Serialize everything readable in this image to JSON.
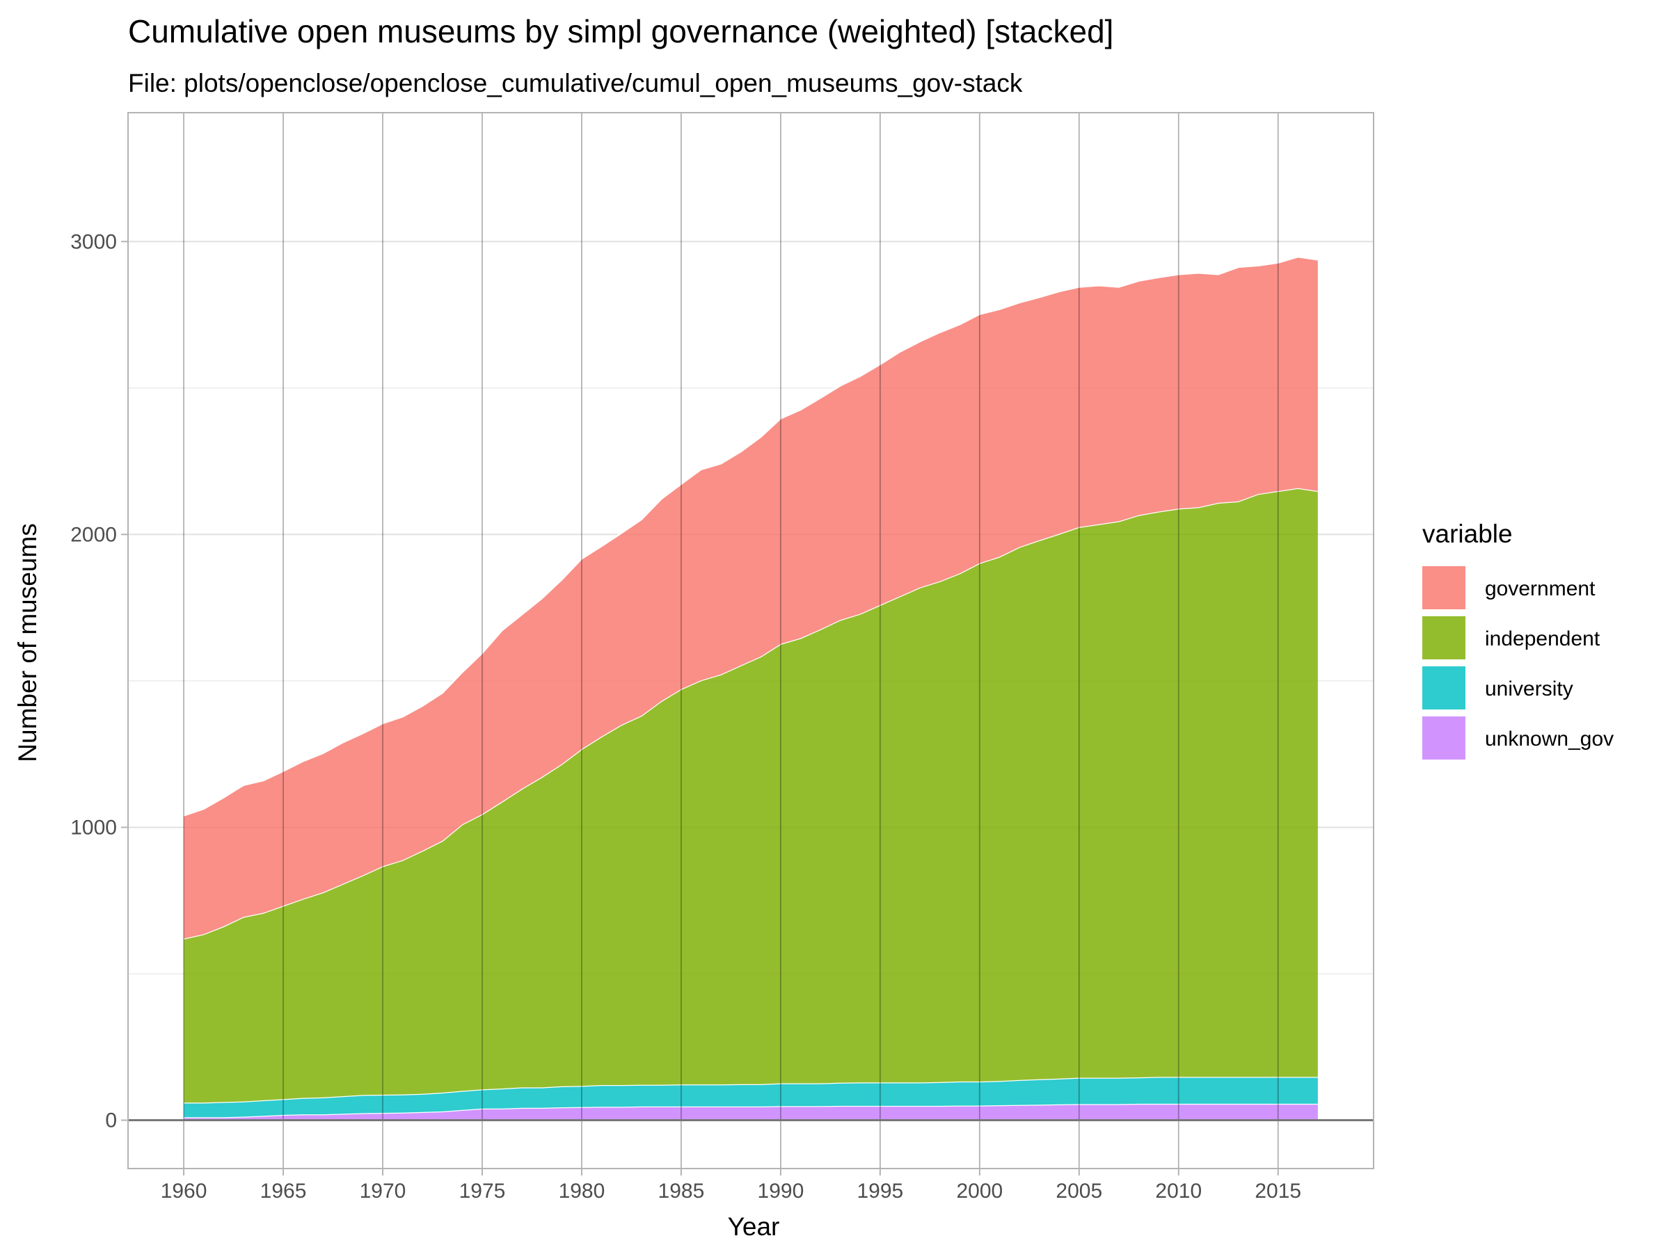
{
  "chart_data": {
    "type": "area",
    "stacked": true,
    "title": "Cumulative open museums by simpl governance (weighted) [stacked]",
    "subtitle": "File: plots/openclose/openclose_cumulative/cumul_open_museums_gov-stack",
    "xlabel": "Year",
    "ylabel": "Number of museums",
    "xlim": [
      1957.2,
      2019.8
    ],
    "ylim": [
      -165,
      3440
    ],
    "x_ticks": [
      1960,
      1965,
      1970,
      1975,
      1980,
      1985,
      1990,
      1995,
      2000,
      2005,
      2010,
      2015
    ],
    "y_ticks": [
      0,
      1000,
      2000,
      3000
    ],
    "y_minor_ticks": [
      500,
      1500,
      2500
    ],
    "grid": true,
    "legend_title": "variable",
    "legend_position": "right",
    "x": [
      1960,
      1961,
      1962,
      1963,
      1964,
      1965,
      1966,
      1967,
      1968,
      1969,
      1970,
      1971,
      1972,
      1973,
      1974,
      1975,
      1976,
      1977,
      1978,
      1979,
      1980,
      1981,
      1982,
      1983,
      1984,
      1985,
      1986,
      1987,
      1988,
      1989,
      1990,
      1991,
      1992,
      1993,
      1994,
      1995,
      1996,
      1997,
      1998,
      1999,
      2000,
      2001,
      2002,
      2003,
      2004,
      2005,
      2006,
      2007,
      2008,
      2009,
      2010,
      2011,
      2012,
      2013,
      2014,
      2015,
      2016,
      2017
    ],
    "series": [
      {
        "name": "unknown_gov",
        "color": "#C77CFF",
        "values": [
          10,
          10,
          10,
          12,
          15,
          18,
          20,
          20,
          22,
          24,
          25,
          26,
          28,
          30,
          35,
          40,
          40,
          42,
          42,
          44,
          45,
          46,
          46,
          47,
          47,
          47,
          47,
          47,
          47,
          47,
          48,
          48,
          48,
          49,
          49,
          49,
          49,
          49,
          49,
          50,
          50,
          51,
          52,
          53,
          54,
          55,
          55,
          55,
          56,
          56,
          56,
          56,
          56,
          56,
          56,
          56,
          56,
          56
        ]
      },
      {
        "name": "university",
        "color": "#00BFC4",
        "values": [
          50,
          50,
          52,
          52,
          53,
          54,
          56,
          58,
          60,
          62,
          62,
          62,
          62,
          64,
          65,
          65,
          68,
          70,
          70,
          72,
          72,
          74,
          74,
          74,
          74,
          75,
          75,
          75,
          76,
          76,
          78,
          78,
          78,
          79,
          80,
          80,
          80,
          80,
          81,
          82,
          82,
          83,
          85,
          87,
          88,
          90,
          90,
          90,
          90,
          92,
          92,
          92,
          92,
          92,
          92,
          92,
          92,
          92
        ]
      },
      {
        "name": "independent",
        "color": "#7CAE00",
        "values": [
          560,
          575,
          600,
          630,
          640,
          660,
          680,
          700,
          725,
          750,
          780,
          800,
          830,
          860,
          910,
          940,
          980,
          1020,
          1060,
          1100,
          1150,
          1190,
          1230,
          1260,
          1310,
          1350,
          1380,
          1400,
          1430,
          1460,
          1500,
          1520,
          1550,
          1580,
          1600,
          1630,
          1660,
          1690,
          1710,
          1735,
          1770,
          1790,
          1820,
          1840,
          1860,
          1880,
          1890,
          1900,
          1920,
          1930,
          1940,
          1945,
          1960,
          1965,
          1990,
          2000,
          2010,
          2000
        ]
      },
      {
        "name": "government",
        "color": "#F8766D",
        "values": [
          420,
          428,
          440,
          450,
          452,
          460,
          470,
          475,
          483,
          485,
          488,
          490,
          495,
          505,
          520,
          550,
          585,
          595,
          610,
          630,
          650,
          650,
          655,
          670,
          690,
          700,
          720,
          720,
          730,
          750,
          770,
          780,
          790,
          800,
          812,
          822,
          835,
          840,
          850,
          850,
          850,
          845,
          835,
          830,
          828,
          820,
          815,
          800,
          800,
          800,
          800,
          800,
          780,
          800,
          780,
          780,
          790,
          790
        ]
      }
    ],
    "legend_order": [
      "government",
      "independent",
      "university",
      "unknown_gov"
    ]
  }
}
